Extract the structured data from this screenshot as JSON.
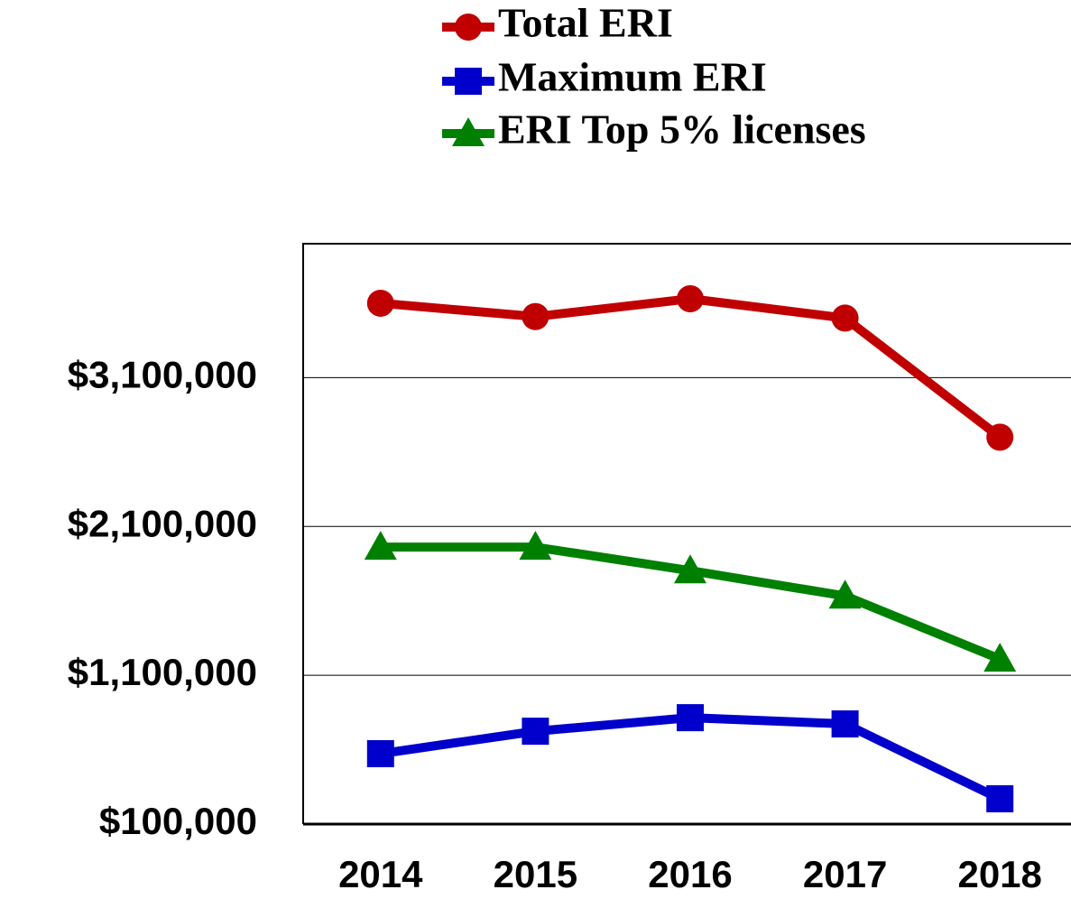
{
  "chart_data": {
    "type": "line",
    "categories": [
      "2014",
      "2015",
      "2016",
      "2017",
      "2018"
    ],
    "series": [
      {
        "name": "Total ERI",
        "color": "#c00000",
        "marker": "circle",
        "values": [
          3600000,
          3510000,
          3630000,
          3500000,
          2700000
        ]
      },
      {
        "name": "Maximum ERI",
        "color": "#0000cc",
        "marker": "square",
        "values": [
          573000,
          724000,
          815000,
          773000,
          270000
        ]
      },
      {
        "name": "ERI Top 5% licenses",
        "color": "#008000",
        "marker": "triangle",
        "values": [
          1961000,
          1961000,
          1803000,
          1633000,
          1209000
        ]
      }
    ],
    "ylim": [
      100000,
      4000000
    ],
    "yticks": [
      {
        "value": 100000,
        "label": "$100,000"
      },
      {
        "value": 1100000,
        "label": "$1,100,000"
      },
      {
        "value": 2100000,
        "label": "$2,100,000"
      },
      {
        "value": 3100000,
        "label": "$3,100,000"
      }
    ],
    "grid": true
  }
}
